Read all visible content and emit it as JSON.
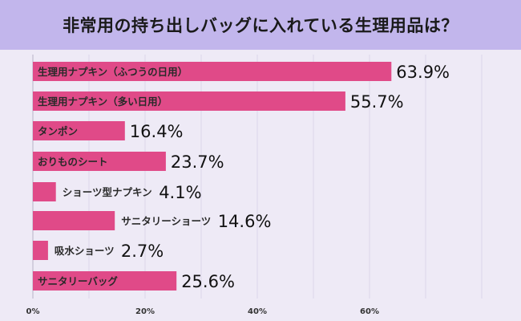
{
  "chart_data": {
    "type": "bar",
    "orientation": "horizontal",
    "title": "非常用の持ち出しバッグに入れている生理用品は？",
    "categories": [
      "生理用ナプキン（ふつうの日用）",
      "生理用ナプキン（多い日用）",
      "タンポン",
      "おりものシート",
      "ショーツ型ナプキン",
      "サニタリーショーツ",
      "吸水ショーツ",
      "サニタリーバッグ"
    ],
    "values": [
      63.9,
      55.7,
      16.4,
      23.7,
      4.1,
      14.6,
      2.7,
      25.6
    ],
    "value_labels": [
      "63.9%",
      "55.7%",
      "16.4%",
      "23.7%",
      "4.1%",
      "14.6%",
      "2.7%",
      "25.6%"
    ],
    "xlim": [
      0,
      80
    ],
    "x_ticks": [
      0,
      20,
      40,
      60
    ],
    "x_tick_labels": [
      "0%",
      "20%",
      "40%",
      "60%"
    ],
    "grid": true,
    "xlabel": "",
    "ylabel": "",
    "colors": {
      "bar": "#e04a88",
      "title_band": "#c2b6ec",
      "background": "#eeeaf6"
    }
  }
}
